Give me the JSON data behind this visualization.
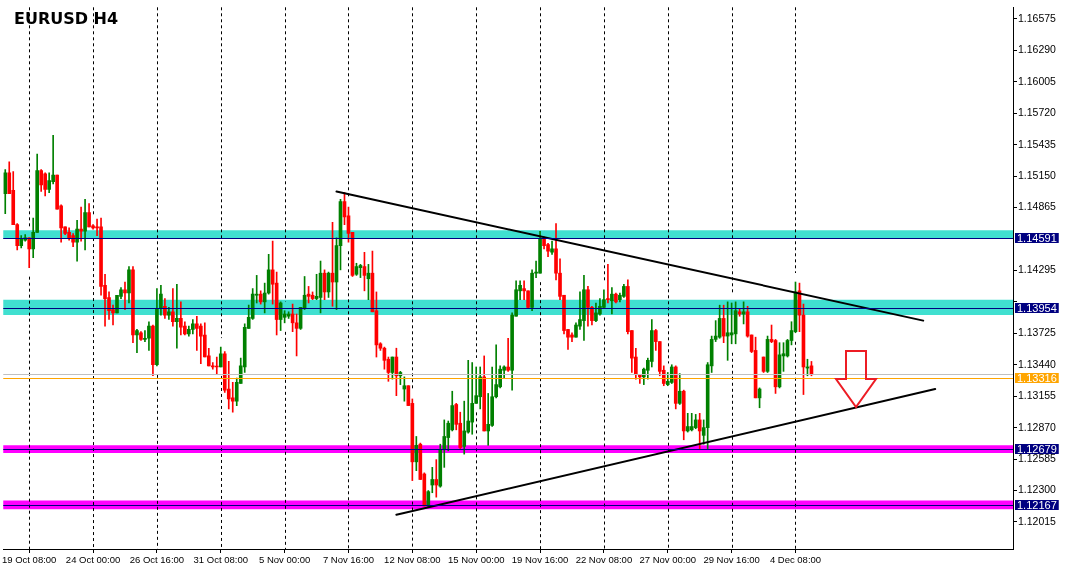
{
  "chart_data": {
    "type": "candlestick",
    "title": "EURUSD H4",
    "categories": [
      null,
      null,
      null,
      null,
      null,
      null,
      "19 Oct 08:00",
      null,
      null,
      null,
      null,
      null,
      null,
      null,
      null,
      null,
      null,
      null,
      null,
      null,
      null,
      null,
      "24 Oct 00:00",
      null,
      null,
      null,
      null,
      null,
      null,
      null,
      null,
      null,
      null,
      null,
      null,
      null,
      null,
      null,
      "26 Oct 16:00",
      null,
      null,
      null,
      null,
      null,
      null,
      null,
      null,
      null,
      null,
      null,
      null,
      null,
      null,
      null,
      "31 Oct 08:00",
      null,
      null,
      null,
      null,
      null,
      null,
      null,
      null,
      null,
      null,
      null,
      null,
      null,
      null,
      null,
      "5 Nov 00:00",
      null,
      null,
      null,
      null,
      null,
      null,
      null,
      null,
      null,
      null,
      null,
      null,
      null,
      null,
      null,
      "7 Nov 16:00",
      null,
      null,
      null,
      null,
      null,
      null,
      null,
      null,
      null,
      null,
      null,
      null,
      null,
      null,
      null,
      "12 Nov 08:00",
      null,
      null,
      null,
      null,
      null,
      null,
      null,
      null,
      null,
      null,
      null,
      null,
      null,
      null,
      null,
      "15 Nov 00:00",
      null,
      null,
      null,
      null,
      null,
      null,
      null,
      null,
      null,
      null,
      null,
      null,
      null,
      null,
      null,
      "19 Nov 16:00",
      null,
      null,
      null,
      null,
      null,
      null,
      null,
      null,
      null,
      null,
      null,
      null,
      null,
      null,
      null,
      "22 Nov 08:00",
      null,
      null,
      null,
      null,
      null,
      null,
      null,
      null,
      null,
      null,
      null,
      null,
      null,
      null,
      null,
      "27 Nov 00:00",
      null,
      null,
      null,
      null,
      null,
      null,
      null,
      null,
      null,
      null,
      null,
      null,
      null,
      null,
      null,
      "29 Nov 16:00",
      null,
      null,
      null,
      null,
      null,
      null,
      null,
      null,
      null,
      null,
      null,
      null,
      null,
      null,
      null,
      "4 Dec 08:00",
      null,
      null,
      null,
      null,
      null,
      null,
      null,
      null,
      null,
      null,
      null,
      null,
      null,
      null,
      null,
      null,
      null,
      null,
      null,
      null,
      null,
      null,
      null,
      null,
      null,
      null,
      null,
      null,
      null,
      null,
      null,
      null,
      null,
      null,
      null,
      null,
      null,
      null,
      null,
      null,
      null,
      null,
      null,
      null,
      null,
      null,
      null,
      null,
      null,
      null,
      null,
      null,
      null,
      null
    ],
    "ohlc": [
      [
        1.1499,
        1.1521,
        1.1481,
        1.1518
      ],
      [
        1.1518,
        1.1528,
        1.1499,
        1.1499
      ],
      [
        1.1502,
        1.1519,
        1.1471,
        1.1471
      ],
      [
        1.1471,
        1.1472,
        1.1448,
        1.1452
      ],
      [
        1.1452,
        1.1461,
        1.145,
        1.1458
      ],
      [
        1.1457,
        1.1462,
        1.1456,
        1.1459
      ],
      [
        1.1459,
        1.1459,
        1.1432,
        1.1449
      ],
      [
        1.1449,
        1.1477,
        1.1441,
        1.1464
      ],
      [
        1.1464,
        1.1535,
        1.1464,
        1.152
      ],
      [
        1.152,
        1.1521,
        1.1501,
        1.1507
      ],
      [
        1.1517,
        1.1518,
        1.1497,
        1.1503
      ],
      [
        1.1503,
        1.1518,
        1.15,
        1.1511
      ],
      [
        1.151,
        1.1552,
        1.1508,
        1.1516
      ],
      [
        1.1516,
        1.1516,
        1.1485,
        1.1485
      ],
      [
        1.1488,
        1.1489,
        1.1455,
        1.1468
      ],
      [
        1.1469,
        1.1469,
        1.1462,
        1.1463
      ],
      [
        1.1464,
        1.1468,
        1.1457,
        1.1459
      ],
      [
        1.1461,
        1.1463,
        1.1451,
        1.1455
      ],
      [
        1.1455,
        1.1475,
        1.1438,
        1.1467
      ],
      [
        1.1467,
        1.1487,
        1.1456,
        1.1465
      ],
      [
        1.1465,
        1.1494,
        1.1448,
        1.1482
      ],
      [
        1.1482,
        1.149,
        1.1469,
        1.1469
      ],
      [
        1.147,
        1.1471,
        1.1467,
        1.1468
      ],
      [
        1.1469,
        1.1476,
        1.1461,
        1.1468
      ],
      [
        1.1469,
        1.1477,
        1.1407,
        1.1415
      ],
      [
        1.1416,
        1.1426,
        1.1379,
        1.1404
      ],
      [
        1.1405,
        1.141,
        1.1385,
        1.1393
      ],
      [
        1.1394,
        1.1398,
        1.138,
        1.1391
      ],
      [
        1.1391,
        1.1407,
        1.1391,
        1.1407
      ],
      [
        1.1406,
        1.1414,
        1.1404,
        1.1412
      ],
      [
        1.1412,
        1.1419,
        1.1394,
        1.1409
      ],
      [
        1.1409,
        1.1433,
        1.14,
        1.143
      ],
      [
        1.143,
        1.1433,
        1.1364,
        1.1371
      ],
      [
        1.1371,
        1.1376,
        1.1355,
        1.1375
      ],
      [
        1.1373,
        1.1374,
        1.1366,
        1.1367
      ],
      [
        1.1367,
        1.1375,
        1.1365,
        1.1368
      ],
      [
        1.1368,
        1.1383,
        1.1357,
        1.1379
      ],
      [
        1.1379,
        1.138,
        1.1334,
        1.1344
      ],
      [
        1.1344,
        1.1413,
        1.1343,
        1.1395
      ],
      [
        1.1395,
        1.1416,
        1.1389,
        1.1408
      ],
      [
        1.1397,
        1.1404,
        1.1386,
        1.1389
      ],
      [
        1.1389,
        1.1396,
        1.1385,
        1.1392
      ],
      [
        1.1392,
        1.1413,
        1.1379,
        1.1383
      ],
      [
        1.1383,
        1.1417,
        1.1359,
        1.1386
      ],
      [
        1.1386,
        1.1401,
        1.1371,
        1.1378
      ],
      [
        1.1379,
        1.1383,
        1.1371,
        1.1372
      ],
      [
        1.1372,
        1.1379,
        1.137,
        1.1376
      ],
      [
        1.1376,
        1.1385,
        1.1372,
        1.1381
      ],
      [
        1.1381,
        1.1388,
        1.1357,
        1.1377
      ],
      [
        1.1379,
        1.1381,
        1.1345,
        1.137
      ],
      [
        1.1371,
        1.1382,
        1.1351,
        1.1351
      ],
      [
        1.1352,
        1.1359,
        1.1343,
        1.1343
      ],
      [
        1.1343,
        1.1346,
        1.134,
        1.1342
      ],
      [
        1.1342,
        1.1351,
        1.1335,
        1.1342
      ],
      [
        1.1342,
        1.136,
        1.1342,
        1.1354
      ],
      [
        1.1354,
        1.1356,
        1.1319,
        1.1321
      ],
      [
        1.1322,
        1.1347,
        1.1304,
        1.1313
      ],
      [
        1.1314,
        1.1328,
        1.1301,
        1.1311
      ],
      [
        1.1311,
        1.1332,
        1.1307,
        1.1328
      ],
      [
        1.1327,
        1.135,
        1.1327,
        1.1343
      ],
      [
        1.1342,
        1.1381,
        1.1337,
        1.1378
      ],
      [
        1.1377,
        1.1398,
        1.1377,
        1.1387
      ],
      [
        1.1386,
        1.1413,
        1.1385,
        1.1408
      ],
      [
        1.1407,
        1.1425,
        1.14,
        1.1408
      ],
      [
        1.1408,
        1.1411,
        1.1399,
        1.1401
      ],
      [
        1.1401,
        1.1418,
        1.1391,
        1.1409
      ],
      [
        1.1409,
        1.1444,
        1.1408,
        1.143
      ],
      [
        1.143,
        1.1456,
        1.1399,
        1.1417
      ],
      [
        1.1418,
        1.1428,
        1.1371,
        1.1385
      ],
      [
        1.1385,
        1.1401,
        1.1375,
        1.14
      ],
      [
        1.1387,
        1.1393,
        1.1382,
        1.139
      ],
      [
        1.1388,
        1.1392,
        1.1386,
        1.139
      ],
      [
        1.139,
        1.1399,
        1.1374,
        1.1382
      ],
      [
        1.1382,
        1.139,
        1.1352,
        1.1377
      ],
      [
        1.1377,
        1.1396,
        1.1376,
        1.1396
      ],
      [
        1.1395,
        1.1424,
        1.1394,
        1.1407
      ],
      [
        1.1408,
        1.1415,
        1.14,
        1.1406
      ],
      [
        1.1407,
        1.141,
        1.1403,
        1.1404
      ],
      [
        1.1404,
        1.1426,
        1.1403,
        1.1406
      ],
      [
        1.1405,
        1.1438,
        1.1391,
        1.1427
      ],
      [
        1.1427,
        1.143,
        1.1403,
        1.141
      ],
      [
        1.141,
        1.1428,
        1.1405,
        1.1427
      ],
      [
        1.1427,
        1.1473,
        1.1397,
        1.1419
      ],
      [
        1.1419,
        1.1459,
        1.1394,
        1.1452
      ],
      [
        1.1452,
        1.1494,
        1.143,
        1.1492
      ],
      [
        1.1492,
        1.15,
        1.1471,
        1.1478
      ],
      [
        1.1479,
        1.1487,
        1.1455,
        1.1463
      ],
      [
        1.1464,
        1.1464,
        1.1424,
        1.1425
      ],
      [
        1.1426,
        1.1436,
        1.1425,
        1.1433
      ],
      [
        1.1432,
        1.1435,
        1.1423,
        1.1434
      ],
      [
        1.1433,
        1.1446,
        1.1411,
        1.1425
      ],
      [
        1.1422,
        1.1435,
        1.1403,
        1.1427
      ],
      [
        1.1427,
        1.1447,
        1.1392,
        1.1392
      ],
      [
        1.1393,
        1.141,
        1.1351,
        1.1362
      ],
      [
        1.1363,
        1.1364,
        1.1357,
        1.1359
      ],
      [
        1.1359,
        1.136,
        1.134,
        1.1348
      ],
      [
        1.1349,
        1.1351,
        1.1329,
        1.1337
      ],
      [
        1.1337,
        1.1351,
        1.1331,
        1.1351
      ],
      [
        1.1351,
        1.1359,
        1.1316,
        1.1334
      ],
      [
        1.1334,
        1.1338,
        1.1326,
        1.1337
      ],
      [
        1.1322,
        1.1333,
        1.1311,
        1.1325
      ],
      [
        1.1325,
        1.1325,
        1.1307,
        1.1307
      ],
      [
        1.1309,
        1.1313,
        1.1239,
        1.1256
      ],
      [
        1.1256,
        1.1279,
        1.1248,
        1.1271
      ],
      [
        1.1272,
        1.1273,
        1.124,
        1.124
      ],
      [
        1.1245,
        1.1246,
        1.1216,
        1.1216
      ],
      [
        1.1216,
        1.123,
        1.1215,
        1.1229
      ],
      [
        1.1235,
        1.1251,
        1.1228,
        1.124
      ],
      [
        1.124,
        1.1258,
        1.1224,
        1.1235
      ],
      [
        1.1234,
        1.1272,
        1.1233,
        1.1267
      ],
      [
        1.1267,
        1.1294,
        1.1251,
        1.1279
      ],
      [
        1.1278,
        1.1293,
        1.1266,
        1.1291
      ],
      [
        1.1285,
        1.132,
        1.1284,
        1.1307
      ],
      [
        1.1308,
        1.1309,
        1.1285,
        1.129
      ],
      [
        1.1291,
        1.1301,
        1.1268,
        1.1269
      ],
      [
        1.127,
        1.1311,
        1.1263,
        1.1284
      ],
      [
        1.1283,
        1.1348,
        1.1282,
        1.1293
      ],
      [
        1.1292,
        1.1346,
        1.1281,
        1.1309
      ],
      [
        1.1309,
        1.1342,
        1.1309,
        1.1316
      ],
      [
        1.1315,
        1.1342,
        1.1304,
        1.1333
      ],
      [
        1.1333,
        1.1352,
        1.1284,
        1.1284
      ],
      [
        1.1284,
        1.1318,
        1.1271,
        1.129
      ],
      [
        1.1289,
        1.1342,
        1.1288,
        1.1315
      ],
      [
        1.1315,
        1.1362,
        1.1314,
        1.1326
      ],
      [
        1.1324,
        1.1343,
        1.1323,
        1.134
      ],
      [
        1.1339,
        1.1343,
        1.1332,
        1.1342
      ],
      [
        1.1342,
        1.1368,
        1.1338,
        1.1339
      ],
      [
        1.1339,
        1.1391,
        1.1321,
        1.1389
      ],
      [
        1.1388,
        1.142,
        1.1388,
        1.1412
      ],
      [
        1.1411,
        1.142,
        1.1403,
        1.1416
      ],
      [
        1.1413,
        1.142,
        1.1403,
        1.1411
      ],
      [
        1.1411,
        1.1411,
        1.1395,
        1.1396
      ],
      [
        1.1396,
        1.143,
        1.1393,
        1.1427
      ],
      [
        1.1427,
        1.1438,
        1.1423,
        1.1428
      ],
      [
        1.1427,
        1.1465,
        1.1427,
        1.1458
      ],
      [
        1.1458,
        1.146,
        1.1449,
        1.1452
      ],
      [
        1.1453,
        1.1454,
        1.1442,
        1.1447
      ],
      [
        1.1446,
        1.1456,
        1.1444,
        1.1449
      ],
      [
        1.1449,
        1.1472,
        1.1421,
        1.1427
      ],
      [
        1.1427,
        1.144,
        1.1403,
        1.1406
      ],
      [
        1.1407,
        1.1407,
        1.1372,
        1.1375
      ],
      [
        1.1376,
        1.1376,
        1.1358,
        1.1369
      ],
      [
        1.1371,
        1.1373,
        1.1365,
        1.1369
      ],
      [
        1.1369,
        1.1382,
        1.1369,
        1.138
      ],
      [
        1.1379,
        1.141,
        1.1376,
        1.1385
      ],
      [
        1.1384,
        1.1425,
        1.1366,
        1.1412
      ],
      [
        1.1412,
        1.1415,
        1.1379,
        1.1396
      ],
      [
        1.1396,
        1.1397,
        1.138,
        1.1384
      ],
      [
        1.1384,
        1.14,
        1.1383,
        1.1391
      ],
      [
        1.139,
        1.1404,
        1.1389,
        1.1397
      ],
      [
        1.1396,
        1.1412,
        1.1395,
        1.1403
      ],
      [
        1.1404,
        1.1435,
        1.14,
        1.1403
      ],
      [
        1.1402,
        1.1414,
        1.139,
        1.1408
      ],
      [
        1.1408,
        1.1409,
        1.14,
        1.1401
      ],
      [
        1.1403,
        1.1409,
        1.1401,
        1.1407
      ],
      [
        1.1406,
        1.1417,
        1.1405,
        1.1415
      ],
      [
        1.1415,
        1.1421,
        1.1372,
        1.1374
      ],
      [
        1.1375,
        1.1375,
        1.1337,
        1.135
      ],
      [
        1.1351,
        1.1359,
        1.1331,
        1.1335
      ],
      [
        1.1335,
        1.1335,
        1.1327,
        1.1333
      ],
      [
        1.1333,
        1.1341,
        1.1326,
        1.134
      ],
      [
        1.1339,
        1.135,
        1.1331,
        1.1348
      ],
      [
        1.1347,
        1.1385,
        1.1342,
        1.1375
      ],
      [
        1.1375,
        1.1376,
        1.1357,
        1.1365
      ],
      [
        1.1365,
        1.1365,
        1.1334,
        1.1338
      ],
      [
        1.1339,
        1.1343,
        1.1325,
        1.1327
      ],
      [
        1.1326,
        1.1337,
        1.1325,
        1.1329
      ],
      [
        1.1328,
        1.1344,
        1.1327,
        1.1342
      ],
      [
        1.1342,
        1.1343,
        1.1304,
        1.1309
      ],
      [
        1.1309,
        1.1336,
        1.1308,
        1.132
      ],
      [
        1.132,
        1.1321,
        1.1276,
        1.1284
      ],
      [
        1.1284,
        1.13,
        1.1283,
        1.1288
      ],
      [
        1.1285,
        1.13,
        1.1284,
        1.1288
      ],
      [
        1.1287,
        1.1299,
        1.1286,
        1.1294
      ],
      [
        1.1294,
        1.13,
        1.1267,
        1.1284
      ],
      [
        1.128,
        1.1294,
        1.1272,
        1.1287
      ],
      [
        1.1287,
        1.1346,
        1.1268,
        1.1344
      ],
      [
        1.1343,
        1.137,
        1.1337,
        1.1367
      ],
      [
        1.1367,
        1.1384,
        1.1365,
        1.137
      ],
      [
        1.1369,
        1.1398,
        1.1368,
        1.1386
      ],
      [
        1.1386,
        1.1398,
        1.1364,
        1.137
      ],
      [
        1.137,
        1.1401,
        1.1348,
        1.1373
      ],
      [
        1.1371,
        1.14,
        1.1363,
        1.1373
      ],
      [
        1.1372,
        1.1401,
        1.1363,
        1.1393
      ],
      [
        1.1392,
        1.1395,
        1.1388,
        1.139
      ],
      [
        1.139,
        1.1401,
        1.1381,
        1.1392
      ],
      [
        1.1392,
        1.1397,
        1.1369,
        1.137
      ],
      [
        1.1371,
        1.1371,
        1.1355,
        1.1356
      ],
      [
        1.1357,
        1.1369,
        1.1314,
        1.1314
      ],
      [
        1.1314,
        1.1323,
        1.1305,
        1.1322
      ],
      [
        1.1351,
        1.1351,
        1.1337,
        1.1338
      ],
      [
        1.1338,
        1.137,
        1.1337,
        1.1367
      ],
      [
        1.1367,
        1.138,
        1.1364,
        1.1365
      ],
      [
        1.1366,
        1.1367,
        1.1318,
        1.1324
      ],
      [
        1.1324,
        1.1364,
        1.1323,
        1.1353
      ],
      [
        1.1352,
        1.1364,
        1.1338,
        1.1354
      ],
      [
        1.1352,
        1.1367,
        1.1351,
        1.1366
      ],
      [
        1.1366,
        1.1383,
        1.1362,
        1.1375
      ],
      [
        1.1374,
        1.1419,
        1.1373,
        1.141
      ],
      [
        1.1411,
        1.1418,
        1.1374,
        1.1389
      ],
      [
        1.1389,
        1.1399,
        1.1317,
        1.1342
      ],
      [
        1.1341,
        1.1349,
        1.1334,
        1.1342
      ],
      [
        1.1343,
        1.1347,
        1.1334,
        1.1335
      ],
      null,
      null,
      null,
      null,
      null,
      null,
      null,
      null,
      null,
      null,
      null,
      null,
      null,
      null,
      null,
      null,
      null,
      null,
      null,
      null,
      null,
      null,
      null,
      null,
      null,
      null,
      null,
      null,
      null,
      null,
      null,
      null,
      null,
      null,
      null,
      null,
      null,
      null,
      null,
      null,
      null,
      null,
      null,
      null,
      null,
      null,
      null,
      null,
      null,
      null
    ],
    "colors": [
      "#008000",
      "#ff0000",
      "#ff0000",
      "#ff0000",
      "#008000",
      "#008000",
      "#ff0000",
      "#008000",
      "#008000",
      "#ff0000",
      "#ff0000",
      "#008000",
      "#008000",
      "#ff0000",
      "#ff0000",
      "#ff0000",
      "#ff0000",
      "#ff0000",
      "#008000",
      "#ff0000",
      "#008000",
      "#ff0000",
      "#ff0000",
      "#ff0000",
      "#ff0000",
      "#ff0000",
      "#ff0000",
      "#ff0000",
      "#008000",
      "#008000",
      "#ff0000",
      "#008000",
      "#ff0000",
      "#008000",
      "#ff0000",
      "#008000",
      "#008000",
      "#ff0000",
      "#008000",
      "#008000",
      "#ff0000",
      "#008000",
      "#ff0000",
      "#008000",
      "#ff0000",
      "#ff0000",
      "#008000",
      "#008000",
      "#ff0000",
      "#ff0000",
      "#ff0000",
      "#ff0000",
      "#ff0000",
      "#ff0000",
      "#008000",
      "#ff0000",
      "#ff0000",
      "#ff0000",
      "#008000",
      "#008000",
      "#008000",
      "#008000",
      "#008000",
      "#008000",
      "#ff0000",
      "#008000",
      "#008000",
      "#ff0000",
      "#ff0000",
      "#008000",
      "#008000",
      "#008000",
      "#ff0000",
      "#ff0000",
      "#008000",
      "#008000",
      "#ff0000",
      "#ff0000",
      "#008000",
      "#008000",
      "#ff0000",
      "#008000",
      "#ff0000",
      "#008000",
      "#008000",
      "#ff0000",
      "#ff0000",
      "#ff0000",
      "#008000",
      "#008000",
      "#ff0000",
      "#008000",
      "#ff0000",
      "#ff0000",
      "#ff0000",
      "#ff0000",
      "#ff0000",
      "#008000",
      "#ff0000",
      "#008000",
      "#008000",
      "#ff0000",
      "#ff0000",
      "#008000",
      "#ff0000",
      "#ff0000",
      "#008000",
      "#008000",
      "#ff0000",
      "#008000",
      "#008000",
      "#008000",
      "#008000",
      "#ff0000",
      "#ff0000",
      "#008000",
      "#008000",
      "#008000",
      "#008000",
      "#008000",
      "#ff0000",
      "#008000",
      "#008000",
      "#008000",
      "#008000",
      "#008000",
      "#ff0000",
      "#008000",
      "#008000",
      "#008000",
      "#ff0000",
      "#ff0000",
      "#008000",
      "#008000",
      "#008000",
      "#ff0000",
      "#ff0000",
      "#008000",
      "#ff0000",
      "#ff0000",
      "#ff0000",
      "#ff0000",
      "#ff0000",
      "#008000",
      "#008000",
      "#008000",
      "#ff0000",
      "#ff0000",
      "#008000",
      "#008000",
      "#008000",
      "#ff0000",
      "#008000",
      "#ff0000",
      "#008000",
      "#008000",
      "#ff0000",
      "#ff0000",
      "#ff0000",
      "#ff0000",
      "#008000",
      "#008000",
      "#008000",
      "#ff0000",
      "#ff0000",
      "#ff0000",
      "#008000",
      "#008000",
      "#ff0000",
      "#008000",
      "#ff0000",
      "#008000",
      "#008000",
      "#008000",
      "#ff0000",
      "#008000",
      "#008000",
      "#008000",
      "#008000",
      "#008000",
      "#ff0000",
      "#008000",
      "#008000",
      "#008000",
      "#ff0000",
      "#008000",
      "#ff0000",
      "#ff0000",
      "#ff0000",
      "#008000",
      "#ff0000",
      "#008000",
      "#ff0000",
      "#ff0000",
      "#008000",
      "#008000",
      "#008000",
      "#008000",
      "#008000",
      "#ff0000",
      "#ff0000",
      "#008000",
      "#ff0000",
      null,
      null,
      null,
      null,
      null,
      null,
      null,
      null,
      null,
      null,
      null,
      null,
      null,
      null,
      null,
      null,
      null,
      null,
      null,
      null,
      null,
      null,
      null,
      null,
      null,
      null,
      null,
      null,
      null,
      null,
      null,
      null,
      null,
      null,
      null,
      null,
      null,
      null,
      null,
      null,
      null,
      null,
      null,
      null,
      null,
      null,
      null,
      null,
      null,
      null
    ],
    "ylim": [
      1.1177,
      1.1668
    ],
    "yticks": [
      1.16575,
      {
        "value": 1.1629,
        "label": "1.16290"
      },
      1.16005,
      {
        "value": 1.1572,
        "label": "1.15720"
      },
      1.15435,
      {
        "value": 1.1515,
        "label": "1.15150"
      },
      1.14865,
      1.14295,
      {
        "value": 1.1401,
        "label": null
      },
      1.13725,
      {
        "value": 1.1344,
        "label": "1.13440"
      },
      1.13155,
      {
        "value": 1.1287,
        "label": "1.12870"
      },
      1.12585,
      {
        "value": 1.123,
        "label": "1.12300"
      },
      1.12015
    ],
    "grid": "x",
    "series": [
      {
        "type": "line",
        "color": "#000000",
        "values": [
          null,
          null,
          null,
          null,
          null,
          null,
          null,
          null,
          null,
          null,
          null,
          null,
          null,
          null,
          null,
          null,
          null,
          null,
          null,
          null,
          null,
          null,
          null,
          null,
          null,
          null,
          null,
          null,
          null,
          null,
          null,
          null,
          null,
          null,
          null,
          null,
          null,
          null,
          null,
          null,
          null,
          null,
          null,
          null,
          null,
          null,
          null,
          null,
          null,
          null,
          null,
          null,
          null,
          null,
          null,
          null,
          null,
          null,
          null,
          null,
          null,
          null,
          null,
          null,
          null,
          null,
          null,
          null,
          null,
          null,
          null,
          null,
          null,
          null,
          null,
          null,
          null,
          null,
          null,
          null,
          null,
          null,
          null,
          1.1501,
          null,
          null,
          null,
          null,
          null,
          null,
          null,
          null,
          null,
          null,
          null,
          null,
          null,
          null,
          null,
          null,
          null,
          null,
          null,
          null,
          null,
          null,
          null,
          null,
          null,
          null,
          null,
          null,
          null,
          null,
          null,
          null,
          null,
          null,
          null,
          null,
          null,
          null,
          null,
          null,
          null,
          null,
          null,
          null,
          null,
          null,
          null,
          null,
          null,
          null,
          null,
          null,
          null,
          null,
          null,
          null,
          null,
          null,
          null,
          null,
          null,
          null,
          null,
          null,
          null,
          null,
          null,
          null,
          null,
          null,
          null,
          null,
          null,
          null,
          null,
          null,
          null,
          null,
          null,
          null,
          null,
          null,
          null,
          null,
          null,
          null,
          null,
          null,
          null,
          null,
          null,
          null,
          null,
          null,
          null,
          null,
          null,
          null,
          null,
          null,
          null,
          null,
          null,
          null,
          null,
          null,
          null,
          null,
          null,
          null,
          null,
          null,
          null,
          null,
          null,
          null,
          null,
          null,
          null,
          null,
          null,
          null,
          null,
          null,
          null,
          null,
          null,
          null,
          null,
          null,
          null,
          null,
          null,
          null,
          null,
          null,
          null,
          null,
          null,
          null,
          null,
          null,
          null,
          null,
          null,
          null,
          1.1384,
          null,
          null,
          null,
          null,
          null,
          null,
          null,
          null,
          null,
          null,
          null,
          null,
          null,
          null,
          null,
          null,
          null,
          null,
          null,
          null,
          null,
          null
        ]
      },
      {
        "type": "line",
        "color": "#000000",
        "values": [
          null,
          null,
          null,
          null,
          null,
          null,
          null,
          null,
          null,
          null,
          null,
          null,
          null,
          null,
          null,
          null,
          null,
          null,
          null,
          null,
          null,
          null,
          null,
          null,
          null,
          null,
          null,
          null,
          null,
          null,
          null,
          null,
          null,
          null,
          null,
          null,
          null,
          null,
          null,
          null,
          null,
          null,
          null,
          null,
          null,
          null,
          null,
          null,
          null,
          null,
          null,
          null,
          null,
          null,
          null,
          null,
          null,
          null,
          null,
          null,
          null,
          null,
          null,
          null,
          null,
          null,
          null,
          null,
          null,
          null,
          null,
          null,
          null,
          null,
          null,
          null,
          null,
          null,
          null,
          null,
          null,
          null,
          null,
          null,
          null,
          null,
          null,
          null,
          null,
          null,
          null,
          null,
          null,
          null,
          null,
          null,
          null,
          null,
          1.1208,
          null,
          null,
          null,
          null,
          null,
          null,
          null,
          null,
          null,
          null,
          null,
          null,
          null,
          null,
          null,
          null,
          null,
          null,
          null,
          null,
          null,
          null,
          null,
          null,
          null,
          null,
          null,
          null,
          null,
          null,
          null,
          null,
          null,
          null,
          null,
          null,
          null,
          null,
          null,
          null,
          null,
          null,
          null,
          null,
          null,
          null,
          null,
          null,
          null,
          null,
          null,
          null,
          null,
          null,
          null,
          null,
          null,
          null,
          null,
          null,
          null,
          null,
          null,
          null,
          null,
          null,
          null,
          null,
          null,
          null,
          null,
          null,
          null,
          null,
          null,
          null,
          null,
          null,
          null,
          null,
          null,
          null,
          null,
          null,
          null,
          null,
          null,
          null,
          null,
          null,
          null,
          null,
          null,
          null,
          null,
          null,
          null,
          null,
          null,
          null,
          null,
          null,
          null,
          null,
          null,
          null,
          null,
          null,
          null,
          null,
          null,
          null,
          null,
          null,
          null,
          null,
          null,
          null,
          null,
          null,
          null,
          null,
          null,
          null,
          null,
          null,
          null,
          null,
          null,
          null,
          null,
          null,
          null,
          null,
          1.1322,
          null,
          null,
          null,
          null,
          null,
          null,
          null,
          null,
          null,
          null,
          null,
          null,
          null,
          null,
          null,
          null,
          null,
          null,
          null
        ]
      }
    ],
    "bands": [
      {
        "axis": "y",
        "from": 1.1458,
        "to": 1.1466,
        "color": "#40e0d0"
      },
      {
        "axis": "y",
        "from": 1.1389,
        "to": 1.1403,
        "color": "#40e0d0"
      },
      {
        "axis": "y",
        "from": 1.1264,
        "to": 1.1271,
        "color": "#ff00ff"
      },
      {
        "axis": "y",
        "from": 1.1213,
        "to": 1.1221,
        "color": "#ff00ff"
      }
    ],
    "ref_lines": [
      {
        "axis": "y",
        "value": 1.14591,
        "label": "1.14591",
        "color": "#000080"
      },
      {
        "axis": "y",
        "value": 1.13954,
        "label": "1.13954",
        "color": "#000080"
      },
      {
        "axis": "y",
        "value": 1.1336,
        "color": "#c0c0c0"
      },
      {
        "axis": "y",
        "value": 1.13316,
        "label": "1.13316",
        "color": "#ffa500"
      },
      {
        "axis": "y",
        "value": 1.12679,
        "label": "1.12679",
        "color": "#000080"
      },
      {
        "axis": "y",
        "value": 1.12167,
        "label": "1.12167",
        "color": "#000080"
      }
    ]
  }
}
